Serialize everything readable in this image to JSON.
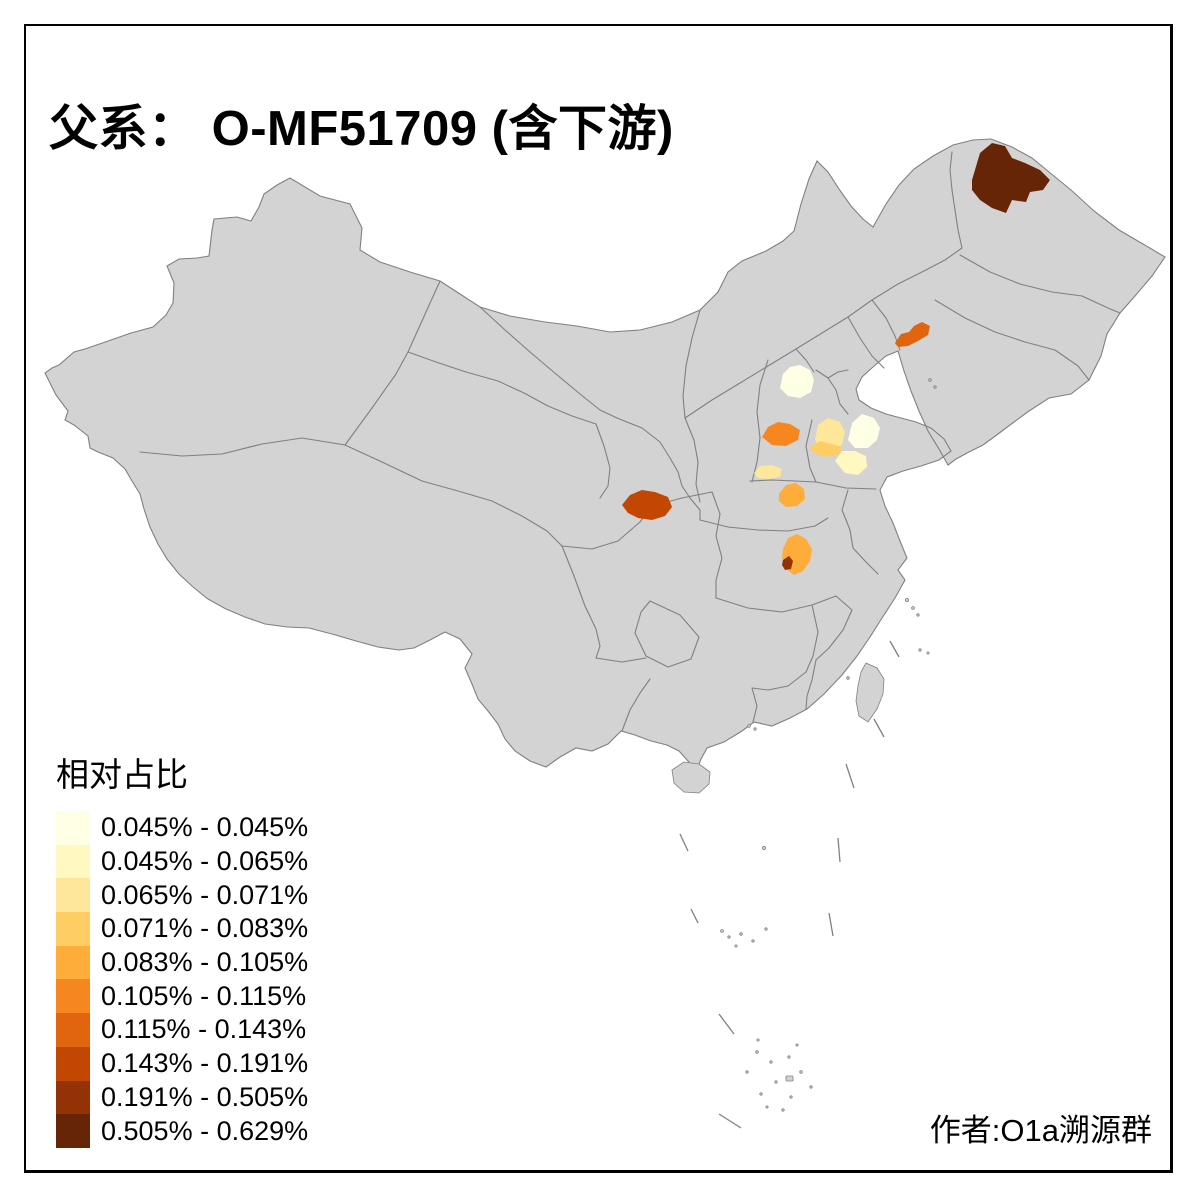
{
  "title": "父系： O-MF51709 (含下游)",
  "credit": "作者:O1a溯源群",
  "legend": {
    "title": "相对占比",
    "bins": [
      {
        "label": "0.045% - 0.045%",
        "color": "#FFFFE5"
      },
      {
        "label": "0.045% - 0.065%",
        "color": "#FFF8C1"
      },
      {
        "label": "0.065% - 0.071%",
        "color": "#FEE79B"
      },
      {
        "label": "0.071% - 0.083%",
        "color": "#FECE65"
      },
      {
        "label": "0.083% - 0.105%",
        "color": "#FEAC3A"
      },
      {
        "label": "0.105% - 0.115%",
        "color": "#F68720"
      },
      {
        "label": "0.115% - 0.143%",
        "color": "#E1640E"
      },
      {
        "label": "0.143% - 0.191%",
        "color": "#C14702"
      },
      {
        "label": "0.191% - 0.505%",
        "color": "#933204"
      },
      {
        "label": "0.505% - 0.629%",
        "color": "#662506"
      }
    ]
  },
  "map": {
    "land_color": "#D3D3D3",
    "border_color": "#808080",
    "sea_color": "#FFFFFF",
    "regions": [
      {
        "id": "heilongjiang-north",
        "bin": 9
      },
      {
        "id": "liaoning-west",
        "bin": 6
      },
      {
        "id": "beijing",
        "bin": 0
      },
      {
        "id": "hebei-southwest",
        "bin": 5
      },
      {
        "id": "shandong-northwest",
        "bin": 2
      },
      {
        "id": "shandong-west",
        "bin": 3
      },
      {
        "id": "shandong-central",
        "bin": 0
      },
      {
        "id": "shandong-south",
        "bin": 1
      },
      {
        "id": "henan-north",
        "bin": 2
      },
      {
        "id": "henan-central",
        "bin": 4
      },
      {
        "id": "hubei-northwest",
        "bin": 4
      },
      {
        "id": "hubei-central",
        "bin": 8
      },
      {
        "id": "sichuan-chengdu",
        "bin": 7
      }
    ]
  },
  "chart_data": {
    "type": "choropleth-map",
    "title": "父系： O-MF51709 (含下游)",
    "legend_title": "相对占比",
    "unit": "%",
    "bin_labels": [
      "0.045% - 0.045%",
      "0.045% - 0.065%",
      "0.065% - 0.071%",
      "0.071% - 0.083%",
      "0.083% - 0.105%",
      "0.105% - 0.115%",
      "0.115% - 0.143%",
      "0.143% - 0.191%",
      "0.191% - 0.505%",
      "0.505% - 0.629%"
    ],
    "highlighted_regions": [
      {
        "id": "heilongjiang-north",
        "value_range": "0.505% - 0.629%"
      },
      {
        "id": "liaoning-west",
        "value_range": "0.115% - 0.143%"
      },
      {
        "id": "beijing",
        "value_range": "0.045% - 0.045%"
      },
      {
        "id": "hebei-southwest",
        "value_range": "0.105% - 0.115%"
      },
      {
        "id": "shandong-northwest",
        "value_range": "0.065% - 0.071%"
      },
      {
        "id": "shandong-west",
        "value_range": "0.071% - 0.083%"
      },
      {
        "id": "shandong-central",
        "value_range": "0.045% - 0.045%"
      },
      {
        "id": "shandong-south",
        "value_range": "0.045% - 0.065%"
      },
      {
        "id": "henan-north",
        "value_range": "0.065% - 0.071%"
      },
      {
        "id": "henan-central",
        "value_range": "0.083% - 0.105%"
      },
      {
        "id": "hubei-northwest",
        "value_range": "0.083% - 0.105%"
      },
      {
        "id": "hubei-central",
        "value_range": "0.191% - 0.505%"
      },
      {
        "id": "sichuan-chengdu",
        "value_range": "0.143% - 0.191%"
      }
    ]
  }
}
